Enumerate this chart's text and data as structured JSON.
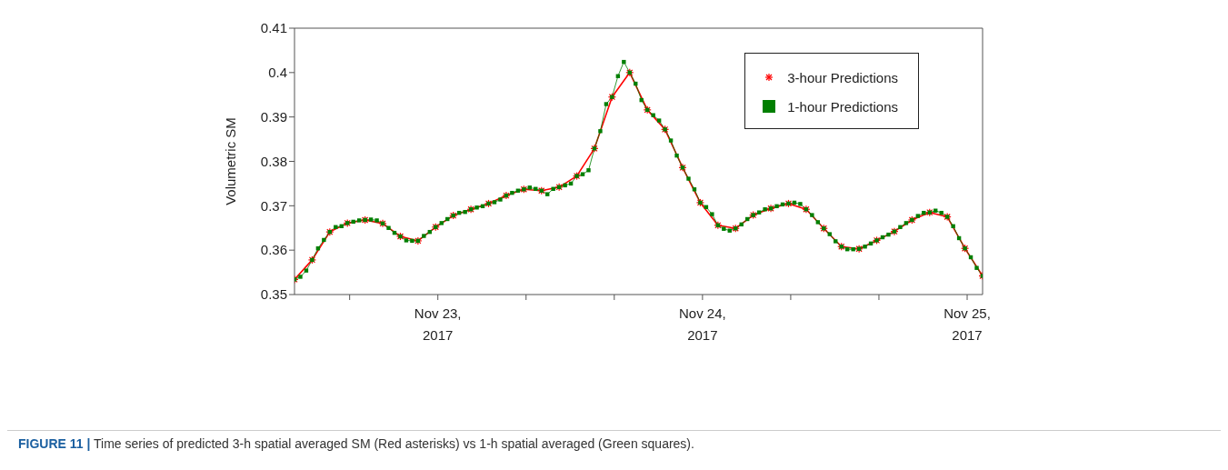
{
  "chart_data": {
    "type": "line",
    "ylabel": "Volumetric SM",
    "xlim": [
      "2017-11-22T11:00",
      "2017-11-25T01:24"
    ],
    "xticks": [
      {
        "value": "2017-11-22T16:00",
        "label": null
      },
      {
        "value": "2017-11-23",
        "label": "Nov 23, 2017"
      },
      {
        "value": "2017-11-23T08:00",
        "label": null
      },
      {
        "value": "2017-11-23T16:00",
        "label": null
      },
      {
        "value": "2017-11-24",
        "label": "Nov 24, 2017"
      },
      {
        "value": "2017-11-24T08:00",
        "label": null
      },
      {
        "value": "2017-11-24T16:00",
        "label": null
      },
      {
        "value": "2017-11-25",
        "label": "Nov 25, 2017"
      }
    ],
    "ylim": [
      0.35,
      0.41
    ],
    "yticks": [
      0.35,
      0.36,
      0.37,
      0.38,
      0.39,
      {
        "value": 0.4,
        "label": "0.4"
      },
      0.41
    ],
    "legend": "top right",
    "annotations": [
      "FIGURE 11 | Time series of predicted 3-h spatial averaged SM (Red asterisks) vs 1-h spatial averaged (Green squares)."
    ],
    "series": [
      {
        "name": "3-hour Predictions",
        "color": "#ff0000",
        "marker": "cross",
        "x": [
          "2017-11-22T11:00",
          "2017-11-22T12:36",
          "2017-11-22T14:12",
          "2017-11-22T15:48",
          "2017-11-22T17:24",
          "2017-11-22T19:00",
          "2017-11-22T20:36",
          "2017-11-22T22:12",
          "2017-11-22T23:48",
          "2017-11-23T01:24",
          "2017-11-23T03:00",
          "2017-11-23T04:36",
          "2017-11-23T06:12",
          "2017-11-23T07:48",
          "2017-11-23T09:24",
          "2017-11-23T11:00",
          "2017-11-23T12:36",
          "2017-11-23T14:12",
          "2017-11-23T15:48",
          "2017-11-23T17:24",
          "2017-11-23T19:00",
          "2017-11-23T20:36",
          "2017-11-23T22:12",
          "2017-11-23T23:48",
          "2017-11-24T01:24",
          "2017-11-24T03:00",
          "2017-11-24T04:36",
          "2017-11-24T06:12",
          "2017-11-24T07:48",
          "2017-11-24T09:24",
          "2017-11-24T11:00",
          "2017-11-24T12:36",
          "2017-11-24T14:12",
          "2017-11-24T15:48",
          "2017-11-24T17:24",
          "2017-11-24T19:00",
          "2017-11-24T20:36",
          "2017-11-24T22:12",
          "2017-11-24T23:48",
          "2017-11-25T01:24"
        ],
        "values": [
          0.3534,
          0.3578,
          0.3641,
          0.3661,
          0.3668,
          0.366,
          0.3631,
          0.3621,
          0.3652,
          0.3678,
          0.3692,
          0.3705,
          0.3723,
          0.3737,
          0.3734,
          0.3742,
          0.3767,
          0.3829,
          0.3945,
          0.4,
          0.3916,
          0.3872,
          0.3786,
          0.3707,
          0.3656,
          0.3649,
          0.3679,
          0.3694,
          0.3705,
          0.3692,
          0.3649,
          0.3608,
          0.3603,
          0.3622,
          0.3642,
          0.3668,
          0.3685,
          0.3675,
          0.3604,
          0.3542
        ]
      },
      {
        "name": "1-hour Predictions",
        "color": "#007f00",
        "marker": "square",
        "x": [
          "2017-11-22T11:00",
          "2017-11-22T11:32",
          "2017-11-22T12:04",
          "2017-11-22T12:36",
          "2017-11-22T13:08",
          "2017-11-22T13:40",
          "2017-11-22T14:12",
          "2017-11-22T14:44",
          "2017-11-22T15:16",
          "2017-11-22T15:48",
          "2017-11-22T16:20",
          "2017-11-22T16:52",
          "2017-11-22T17:24",
          "2017-11-22T17:56",
          "2017-11-22T18:28",
          "2017-11-22T19:00",
          "2017-11-22T19:32",
          "2017-11-22T20:04",
          "2017-11-22T20:36",
          "2017-11-22T21:08",
          "2017-11-22T21:40",
          "2017-11-22T22:12",
          "2017-11-22T22:44",
          "2017-11-22T23:16",
          "2017-11-22T23:48",
          "2017-11-23T00:20",
          "2017-11-23T00:52",
          "2017-11-23T01:24",
          "2017-11-23T01:56",
          "2017-11-23T02:28",
          "2017-11-23T03:00",
          "2017-11-23T03:32",
          "2017-11-23T04:04",
          "2017-11-23T04:36",
          "2017-11-23T05:08",
          "2017-11-23T05:40",
          "2017-11-23T06:12",
          "2017-11-23T06:44",
          "2017-11-23T07:16",
          "2017-11-23T07:48",
          "2017-11-23T08:20",
          "2017-11-23T08:52",
          "2017-11-23T09:24",
          "2017-11-23T09:56",
          "2017-11-23T10:28",
          "2017-11-23T11:00",
          "2017-11-23T11:32",
          "2017-11-23T12:04",
          "2017-11-23T12:36",
          "2017-11-23T13:08",
          "2017-11-23T13:40",
          "2017-11-23T14:12",
          "2017-11-23T14:44",
          "2017-11-23T15:16",
          "2017-11-23T15:48",
          "2017-11-23T16:20",
          "2017-11-23T16:52",
          "2017-11-23T17:24",
          "2017-11-23T17:56",
          "2017-11-23T18:28",
          "2017-11-23T19:00",
          "2017-11-23T19:32",
          "2017-11-23T20:04",
          "2017-11-23T20:36",
          "2017-11-23T21:08",
          "2017-11-23T21:40",
          "2017-11-23T22:12",
          "2017-11-23T22:44",
          "2017-11-23T23:16",
          "2017-11-23T23:48",
          "2017-11-24T00:20",
          "2017-11-24T00:52",
          "2017-11-24T01:24",
          "2017-11-24T01:56",
          "2017-11-24T02:28",
          "2017-11-24T03:00",
          "2017-11-24T03:32",
          "2017-11-24T04:04",
          "2017-11-24T04:36",
          "2017-11-24T05:08",
          "2017-11-24T05:40",
          "2017-11-24T06:12",
          "2017-11-24T06:44",
          "2017-11-24T07:16",
          "2017-11-24T07:48",
          "2017-11-24T08:20",
          "2017-11-24T08:52",
          "2017-11-24T09:24",
          "2017-11-24T09:56",
          "2017-11-24T10:28",
          "2017-11-24T11:00",
          "2017-11-24T11:32",
          "2017-11-24T12:04",
          "2017-11-24T12:36",
          "2017-11-24T13:08",
          "2017-11-24T13:40",
          "2017-11-24T14:12",
          "2017-11-24T14:44",
          "2017-11-24T15:16",
          "2017-11-24T15:48",
          "2017-11-24T16:20",
          "2017-11-24T16:52",
          "2017-11-24T17:24",
          "2017-11-24T17:56",
          "2017-11-24T18:28",
          "2017-11-24T19:00",
          "2017-11-24T19:32",
          "2017-11-24T20:04",
          "2017-11-24T20:36",
          "2017-11-24T21:08",
          "2017-11-24T21:40",
          "2017-11-24T22:12",
          "2017-11-24T22:44",
          "2017-11-24T23:16",
          "2017-11-24T23:48",
          "2017-11-25T00:20",
          "2017-11-25T00:52",
          "2017-11-25T01:24"
        ],
        "values": [
          0.3534,
          0.354,
          0.3554,
          0.3578,
          0.3604,
          0.3623,
          0.3641,
          0.3652,
          0.3654,
          0.3661,
          0.3664,
          0.3667,
          0.3668,
          0.3669,
          0.3667,
          0.366,
          0.365,
          0.3639,
          0.3631,
          0.3622,
          0.3621,
          0.3621,
          0.3632,
          0.3641,
          0.3652,
          0.3661,
          0.367,
          0.3678,
          0.3684,
          0.3686,
          0.3692,
          0.3696,
          0.3699,
          0.3705,
          0.3708,
          0.3714,
          0.3723,
          0.3729,
          0.3734,
          0.3737,
          0.3741,
          0.3738,
          0.3734,
          0.3726,
          0.3738,
          0.3742,
          0.3746,
          0.375,
          0.3767,
          0.3771,
          0.378,
          0.3829,
          0.3868,
          0.3929,
          0.3945,
          0.3992,
          0.4024,
          0.4,
          0.3975,
          0.3938,
          0.3916,
          0.3904,
          0.3892,
          0.3872,
          0.3847,
          0.3813,
          0.3786,
          0.3761,
          0.3737,
          0.3707,
          0.3697,
          0.3681,
          0.3656,
          0.3648,
          0.3644,
          0.3649,
          0.3658,
          0.367,
          0.3679,
          0.3685,
          0.3692,
          0.3694,
          0.3699,
          0.3703,
          0.3705,
          0.3707,
          0.3704,
          0.3692,
          0.3679,
          0.3663,
          0.3649,
          0.3636,
          0.362,
          0.3608,
          0.3602,
          0.3602,
          0.3603,
          0.3608,
          0.3615,
          0.3622,
          0.3629,
          0.3635,
          0.3642,
          0.3652,
          0.3661,
          0.3668,
          0.3677,
          0.3684,
          0.3685,
          0.3689,
          0.3684,
          0.3675,
          0.3654,
          0.3627,
          0.3604,
          0.3584,
          0.356,
          0.3542
        ]
      }
    ]
  }
}
